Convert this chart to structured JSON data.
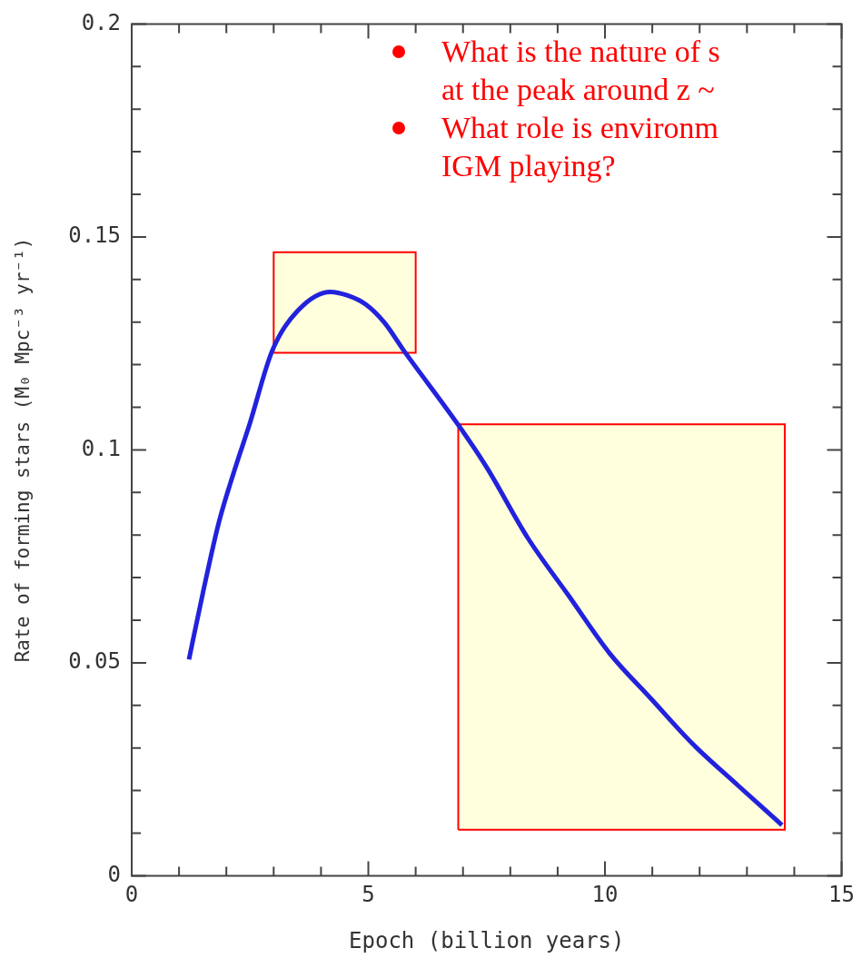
{
  "chart_data": {
    "type": "line",
    "xlabel": "Epoch (billion years)",
    "ylabel": "Rate of forming stars (M₀ Mpc⁻³ yr⁻¹)",
    "xlim": [
      0,
      15
    ],
    "xticks": [
      0,
      {
        "value": 1,
        "label": null
      },
      {
        "value": 2,
        "label": null
      },
      {
        "value": 3,
        "label": null
      },
      {
        "value": 4,
        "label": null
      },
      5,
      {
        "value": 6,
        "label": null
      },
      {
        "value": 7,
        "label": null
      },
      {
        "value": 8,
        "label": null
      },
      {
        "value": 9,
        "label": null
      },
      10,
      {
        "value": 11,
        "label": null
      },
      {
        "value": 12,
        "label": null
      },
      {
        "value": 13,
        "label": null
      },
      {
        "value": 14,
        "label": null
      },
      15
    ],
    "ylim": [
      0,
      0.2
    ],
    "yticks": [
      0,
      {
        "value": 0.01,
        "label": null
      },
      {
        "value": 0.02,
        "label": null
      },
      {
        "value": 0.03,
        "label": null
      },
      {
        "value": 0.04,
        "label": null
      },
      0.05,
      {
        "value": 0.06,
        "label": null
      },
      {
        "value": 0.07,
        "label": null
      },
      {
        "value": 0.08,
        "label": null
      },
      {
        "value": 0.09,
        "label": null
      },
      0.1,
      {
        "value": 0.11,
        "label": null
      },
      {
        "value": 0.12,
        "label": null
      },
      {
        "value": 0.13,
        "label": null
      },
      {
        "value": 0.14,
        "label": null
      },
      0.15,
      {
        "value": 0.16,
        "label": null
      },
      {
        "value": 0.17,
        "label": null
      },
      {
        "value": 0.18,
        "label": null
      },
      {
        "value": 0.19,
        "label": null
      },
      0.2
    ],
    "grid": false,
    "legend": false,
    "marker": "none",
    "line_style": "solid",
    "series": [
      {
        "type": "area",
        "color": "#ff0000",
        "x": [
          3,
          3,
          6,
          6,
          3
        ],
        "values": [
          0.1228,
          0.1464,
          0.1464,
          0.1228,
          0.1228
        ]
      },
      {
        "type": "area",
        "color": "#ff0000",
        "x": [
          6.9,
          6.9,
          13.8,
          13.8,
          6.9
        ],
        "values": [
          0.0108,
          0.106,
          0.106,
          0.0108,
          0.0108
        ]
      },
      {
        "type": "line",
        "color": "#2222dd",
        "x": [
          1.21,
          1.51,
          1.84,
          2.16,
          2.49,
          2.97,
          3.52,
          4.2,
          4.55,
          4.94,
          5.33,
          5.75,
          6.91,
          7.5,
          8.37,
          9.23,
          10.1,
          10.97,
          11.84,
          12.8,
          13.74
        ],
        "values": [
          0.0508,
          0.0667,
          0.0829,
          0.0948,
          0.106,
          0.1233,
          0.1328,
          0.1371,
          0.1363,
          0.1342,
          0.13,
          0.1233,
          0.1057,
          0.0959,
          0.0793,
          0.0658,
          0.0522,
          0.0416,
          0.0311,
          0.0213,
          0.0119
        ]
      }
    ],
    "annotations": [
      "What is the nature of s\nat the peak around z ~",
      "What role is environm\nIGM playing?"
    ]
  }
}
